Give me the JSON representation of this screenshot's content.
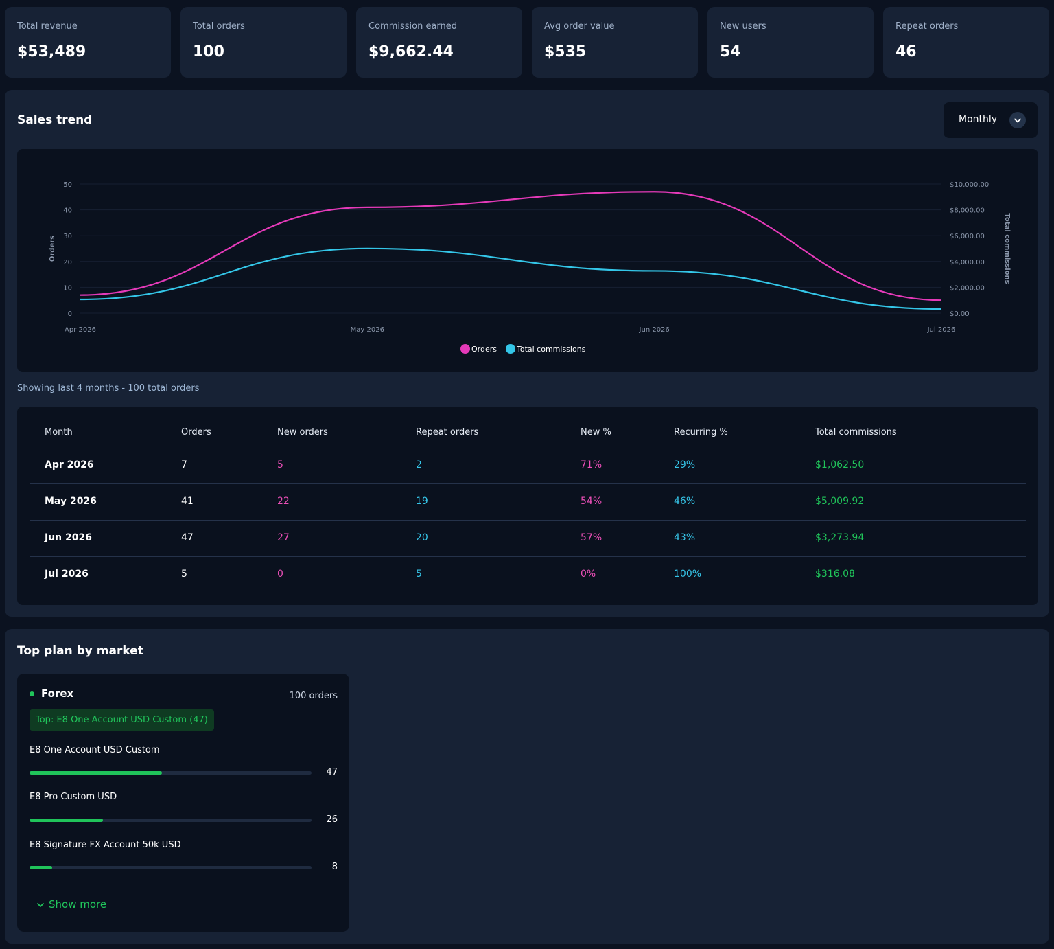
{
  "kpis": [
    {
      "label": "Total revenue",
      "value": "$53,489"
    },
    {
      "label": "Total orders",
      "value": "100"
    },
    {
      "label": "Commission earned",
      "value": "$9,662.44"
    },
    {
      "label": "Avg order value",
      "value": "$535"
    },
    {
      "label": "New users",
      "value": "54"
    },
    {
      "label": "Repeat orders",
      "value": "46"
    }
  ],
  "sales": {
    "title": "Sales trend",
    "period": "Monthly",
    "summary": "Showing last 4 months - 100 total orders"
  },
  "chart_data": {
    "type": "line",
    "x": [
      "Apr 2026",
      "May 2026",
      "Jun 2026",
      "Jul 2026"
    ],
    "series": [
      {
        "name": "Orders",
        "axis": "left",
        "color": "#e53ab9",
        "values": [
          7,
          41,
          47,
          5
        ]
      },
      {
        "name": "Total commissions",
        "axis": "right",
        "color": "#34c6e8",
        "values": [
          1062.5,
          5009.92,
          3273.94,
          316.08
        ]
      }
    ],
    "ylabel": "Orders",
    "y2label": "Total commissions",
    "ylim": [
      0,
      50
    ],
    "y2lim": [
      0,
      10000
    ],
    "yticks": [
      "0",
      "10",
      "20",
      "30",
      "40",
      "50"
    ],
    "y2ticks": [
      "$0.00",
      "$2,000.00",
      "$4,000.00",
      "$6,000.00",
      "$8,000.00",
      "$10,000.00"
    ],
    "legend_position": "bottom",
    "grid": true
  },
  "table": {
    "headers": [
      "Month",
      "Orders",
      "New orders",
      "Repeat orders",
      "New %",
      "Recurring %",
      "Total commissions"
    ],
    "rows": [
      [
        "Apr 2026",
        "7",
        "5",
        "2",
        "71%",
        "29%",
        "$1,062.50"
      ],
      [
        "May 2026",
        "41",
        "22",
        "19",
        "54%",
        "46%",
        "$5,009.92"
      ],
      [
        "Jun 2026",
        "47",
        "27",
        "20",
        "57%",
        "43%",
        "$3,273.94"
      ],
      [
        "Jul 2026",
        "5",
        "0",
        "5",
        "0%",
        "100%",
        "$316.08"
      ]
    ]
  },
  "plans": {
    "title": "Top plan by market",
    "market": {
      "name": "Forex",
      "orders_label": "100 orders",
      "top_badge": "Top: E8 One Account USD Custom (47)",
      "items": [
        {
          "name": "E8 One Account USD Custom",
          "count": "47",
          "share": 0.47
        },
        {
          "name": "E8 Pro Custom USD",
          "count": "26",
          "share": 0.26
        },
        {
          "name": "E8 Signature FX Account 50k USD",
          "count": "8",
          "share": 0.08
        }
      ],
      "show_more": "Show more"
    }
  }
}
